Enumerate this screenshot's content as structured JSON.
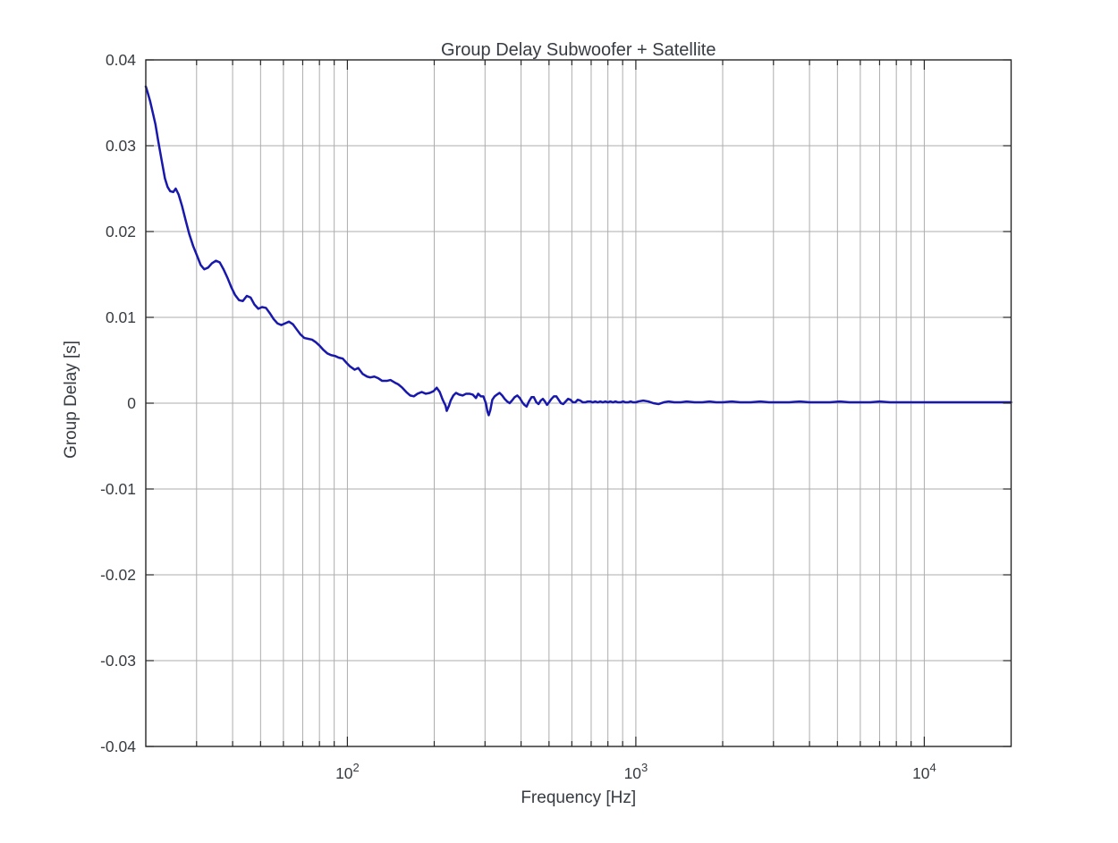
{
  "figure": {
    "background": "#FFFFFF"
  },
  "chart_data": {
    "type": "line",
    "title": "Group Delay Subwoofer + Satellite",
    "xlabel": "Frequency [Hz]",
    "ylabel": "Group Delay [s]",
    "x_scale": "log",
    "xlim": [
      20,
      20000
    ],
    "ylim": [
      -0.04,
      0.04
    ],
    "grid": true,
    "legend": "none",
    "x_major_ticks": [
      {
        "value": 100,
        "label_base": "10",
        "label_exp": "2"
      },
      {
        "value": 1000,
        "label_base": "10",
        "label_exp": "3"
      },
      {
        "value": 10000,
        "label_base": "10",
        "label_exp": "4"
      }
    ],
    "x_gridlines": [
      30,
      40,
      50,
      60,
      70,
      80,
      90,
      100,
      200,
      300,
      400,
      500,
      600,
      700,
      800,
      900,
      1000,
      2000,
      3000,
      4000,
      5000,
      6000,
      7000,
      8000,
      9000,
      10000
    ],
    "y_ticks": [
      {
        "value": 0.04,
        "label": "0.04"
      },
      {
        "value": 0.03,
        "label": "0.03"
      },
      {
        "value": 0.02,
        "label": "0.02"
      },
      {
        "value": 0.01,
        "label": "0.01"
      },
      {
        "value": 0,
        "label": "0"
      },
      {
        "value": -0.01,
        "label": "-0.01"
      },
      {
        "value": -0.02,
        "label": "-0.02"
      },
      {
        "value": -0.03,
        "label": "-0.03"
      },
      {
        "value": -0.04,
        "label": "-0.04"
      }
    ],
    "colors": {
      "line": "#1818AC",
      "grid": "#ADADAD",
      "axis": "#262626",
      "text": "#363C42"
    },
    "series": [
      {
        "name": "Group Delay",
        "points": [
          [
            20,
            0.0369
          ],
          [
            20.3,
            0.0362
          ],
          [
            20.7,
            0.0352
          ],
          [
            21.1,
            0.034
          ],
          [
            21.6,
            0.0325
          ],
          [
            22.1,
            0.0305
          ],
          [
            22.7,
            0.0283
          ],
          [
            23.3,
            0.0262
          ],
          [
            23.8,
            0.0252
          ],
          [
            24.3,
            0.0247
          ],
          [
            24.9,
            0.0246
          ],
          [
            25.4,
            0.025
          ],
          [
            26,
            0.0243
          ],
          [
            26.7,
            0.023
          ],
          [
            27.5,
            0.0213
          ],
          [
            28.3,
            0.0197
          ],
          [
            29.2,
            0.0183
          ],
          [
            30.1,
            0.0172
          ],
          [
            31,
            0.0161
          ],
          [
            31.9,
            0.0156
          ],
          [
            32.9,
            0.0158
          ],
          [
            33.9,
            0.0163
          ],
          [
            35,
            0.0166
          ],
          [
            36.1,
            0.0164
          ],
          [
            37.2,
            0.0156
          ],
          [
            38.4,
            0.0146
          ],
          [
            39.6,
            0.0135
          ],
          [
            40.8,
            0.0126
          ],
          [
            42.1,
            0.012
          ],
          [
            43.4,
            0.0119
          ],
          [
            44.8,
            0.0125
          ],
          [
            46.2,
            0.0123
          ],
          [
            47.6,
            0.0115
          ],
          [
            49.1,
            0.011
          ],
          [
            50.6,
            0.0112
          ],
          [
            52.2,
            0.0111
          ],
          [
            53.8,
            0.0105
          ],
          [
            55.5,
            0.0098
          ],
          [
            57.2,
            0.0093
          ],
          [
            59,
            0.0091
          ],
          [
            60.8,
            0.0093
          ],
          [
            62.7,
            0.0095
          ],
          [
            64.7,
            0.0092
          ],
          [
            66.7,
            0.0086
          ],
          [
            68.8,
            0.008
          ],
          [
            70.9,
            0.0076
          ],
          [
            73.1,
            0.0075
          ],
          [
            75.4,
            0.0074
          ],
          [
            77.7,
            0.0071
          ],
          [
            80.1,
            0.0067
          ],
          [
            82.6,
            0.0062
          ],
          [
            85.2,
            0.0058
          ],
          [
            87.8,
            0.0056
          ],
          [
            90.6,
            0.0055
          ],
          [
            93.4,
            0.0053
          ],
          [
            96.3,
            0.0052
          ],
          [
            99.3,
            0.0047
          ],
          [
            102,
            0.0043
          ],
          [
            106,
            0.0039
          ],
          [
            109,
            0.0041
          ],
          [
            113,
            0.0034
          ],
          [
            117,
            0.0031
          ],
          [
            120,
            0.003
          ],
          [
            124,
            0.0031
          ],
          [
            128,
            0.0029
          ],
          [
            132,
            0.0026
          ],
          [
            137,
            0.0026
          ],
          [
            141,
            0.0027
          ],
          [
            146,
            0.0024
          ],
          [
            150,
            0.0022
          ],
          [
            155,
            0.0018
          ],
          [
            160,
            0.0013
          ],
          [
            165,
            0.0009
          ],
          [
            170,
            0.0008
          ],
          [
            175,
            0.0011
          ],
          [
            181,
            0.0013
          ],
          [
            187,
            0.0011
          ],
          [
            193,
            0.0012
          ],
          [
            199,
            0.0014
          ],
          [
            204,
            0.0018
          ],
          [
            209,
            0.0013
          ],
          [
            214,
            0.0004
          ],
          [
            219,
            -0.0003
          ],
          [
            221,
            -0.0009
          ],
          [
            225,
            -0.0003
          ],
          [
            228,
            0.0003
          ],
          [
            233,
            0.0009
          ],
          [
            238,
            0.0012
          ],
          [
            244,
            0.001
          ],
          [
            251,
            0.0009
          ],
          [
            258,
            0.0011
          ],
          [
            265,
            0.0011
          ],
          [
            272,
            0.001
          ],
          [
            279,
            0.0006
          ],
          [
            284,
            0.0011
          ],
          [
            290,
            0.0008
          ],
          [
            296,
            0.0008
          ],
          [
            302,
            0
          ],
          [
            306,
            -0.001
          ],
          [
            309,
            -0.0014
          ],
          [
            313,
            -0.0008
          ],
          [
            318,
            0.0004
          ],
          [
            324,
            0.0008
          ],
          [
            330,
            0.001
          ],
          [
            337,
            0.0012
          ],
          [
            344,
            0.0009
          ],
          [
            351,
            0.0005
          ],
          [
            358,
            0.0002
          ],
          [
            365,
            0
          ],
          [
            372,
            0.0003
          ],
          [
            380,
            0.0007
          ],
          [
            388,
            0.0009
          ],
          [
            396,
            0.0006
          ],
          [
            404,
            0.0001
          ],
          [
            411,
            -0.0002
          ],
          [
            418,
            -0.0004
          ],
          [
            426,
            0.0002
          ],
          [
            435,
            0.0007
          ],
          [
            443,
            0.0007
          ],
          [
            452,
            0.0001
          ],
          [
            460,
            -0.0001
          ],
          [
            468,
            0.0003
          ],
          [
            476,
            0.0005
          ],
          [
            484,
            0.0002
          ],
          [
            492,
            -0.0002
          ],
          [
            500,
            0.0001
          ],
          [
            510,
            0.0005
          ],
          [
            520,
            0.0008
          ],
          [
            530,
            0.0008
          ],
          [
            540,
            0.0004
          ],
          [
            550,
            0
          ],
          [
            560,
            -0.0001
          ],
          [
            571,
            0.0002
          ],
          [
            582,
            0.0005
          ],
          [
            593,
            0.0004
          ],
          [
            605,
            0.0001
          ],
          [
            617,
            0.0001
          ],
          [
            629,
            0.0004
          ],
          [
            642,
            0.0003
          ],
          [
            655,
            0.0001
          ],
          [
            668,
            0.0001
          ],
          [
            681,
            0.0002
          ],
          [
            695,
            0.0002
          ],
          [
            709,
            0.0001
          ],
          [
            723,
            0.0002
          ],
          [
            738,
            0.0001
          ],
          [
            753,
            0.0002
          ],
          [
            768,
            0.0001
          ],
          [
            784,
            0.0002
          ],
          [
            800,
            0.0001
          ],
          [
            816,
            0.0002
          ],
          [
            833,
            0.0001
          ],
          [
            850,
            0.0002
          ],
          [
            867,
            0.0001
          ],
          [
            885,
            0.0001
          ],
          [
            903,
            0.0002
          ],
          [
            921,
            0.0001
          ],
          [
            940,
            0.0001
          ],
          [
            959,
            0.0002
          ],
          [
            979,
            0.0001
          ],
          [
            999,
            0.0001
          ],
          [
            1020,
            0.0002
          ],
          [
            1061,
            0.0003
          ],
          [
            1104,
            0.0002
          ],
          [
            1150,
            0
          ],
          [
            1200,
            -0.0001
          ],
          [
            1250,
            0.0001
          ],
          [
            1300,
            0.0002
          ],
          [
            1360,
            0.0001
          ],
          [
            1430,
            0.0001
          ],
          [
            1500,
            0.0002
          ],
          [
            1600,
            0.0001
          ],
          [
            1700,
            0.0001
          ],
          [
            1800,
            0.0002
          ],
          [
            1900,
            0.0001
          ],
          [
            2000,
            0.0001
          ],
          [
            2150,
            0.0002
          ],
          [
            2300,
            0.0001
          ],
          [
            2500,
            0.0001
          ],
          [
            2700,
            0.0002
          ],
          [
            2900,
            0.0001
          ],
          [
            3100,
            0.0001
          ],
          [
            3400,
            0.0001
          ],
          [
            3700,
            0.0002
          ],
          [
            4000,
            0.0001
          ],
          [
            4300,
            0.0001
          ],
          [
            4700,
            0.0001
          ],
          [
            5100,
            0.0002
          ],
          [
            5500,
            0.0001
          ],
          [
            6000,
            0.0001
          ],
          [
            6500,
            0.0001
          ],
          [
            7000,
            0.0002
          ],
          [
            7600,
            0.0001
          ],
          [
            8200,
            0.0001
          ],
          [
            8900,
            0.0001
          ],
          [
            9600,
            0.0001
          ],
          [
            10400,
            0.0001
          ],
          [
            11300,
            0.0001
          ],
          [
            12200,
            0.0001
          ],
          [
            13200,
            0.0001
          ],
          [
            14300,
            0.0001
          ],
          [
            15500,
            0.0001
          ],
          [
            16800,
            0.0001
          ],
          [
            18200,
            0.0001
          ],
          [
            20000,
            0.0001
          ]
        ]
      }
    ]
  }
}
